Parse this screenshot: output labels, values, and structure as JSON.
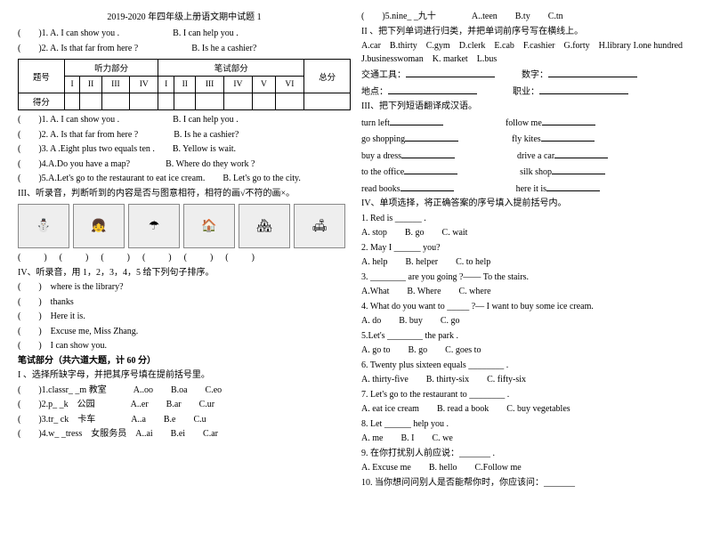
{
  "header": {
    "title": "2019-2020 年四年级上册语文期中试题 1"
  },
  "left": {
    "qA1": "(　　)1. A. I can show you .　　　　　　B. I can help you .",
    "qA2": "(　　)2. A. Is that far from here ?　　　　　　B. Is he a cashier?",
    "scoreTable": {
      "listen": "听力部分",
      "written": "笔试部分",
      "row": "题号",
      "score": "得分",
      "total": "总分",
      "cols": [
        "I",
        "II",
        "III",
        "IV",
        "I",
        "II",
        "III",
        "IV",
        "V",
        "VI"
      ]
    },
    "l1": "(　　)1. A. I can show you .　　　　　　B. I can help you .",
    "l2": "(　　)2. A. Is that far from here ?　　　　B. Is he a cashier?",
    "l3": "(　　)3. A .Eight plus two equals ten .　　B. Yellow is wait.",
    "l4": "(　　)4.A.Do you have a map?　　　　B. Where do they work ?",
    "l5": "(　　)5.A.Let's go to the restaurant to eat ice cream.　　B. Let's go to the city.",
    "secIII": "III、听录音，判断听到的内容是否与图意相符，相符的画√不符的画×。",
    "bracketRow": "(　　)　(　　)　(　　)　(　　)　(　　)　(　　)",
    "secIV": "IV、听录音，用 1，2，3，4，5 给下列句子排序。",
    "s1": "(　　)　where is the library?",
    "s2": "(　　)　thanks",
    "s3": "(　　)　Here it is.",
    "s4": "(　　)　Excuse me, Miss Zhang.",
    "s5": "(　　)　I can show you.",
    "writtenHdr": "笔试部分（共六道大题，计 60 分）",
    "secI": "I 、选择所缺字母，并把其序号填在提前括号里。",
    "c1a": "(　　)1.classr_ _m 教室",
    "c1b": "A..oo　　B.oa　　C.eo",
    "c2a": "(　　)2.p_ _k　公园",
    "c2b": "A..er　　B.ar　　C.ur",
    "c3a": "(　　)3.tr_ ck　卡车",
    "c3b": "A..a　　B.e　　C.u",
    "c4a": "(　　)4.w_ _tress　女服务员",
    "c4b": "A..ai　　B.ei　　C.ar"
  },
  "right": {
    "c5a": "(　　)5.nine_ _九十",
    "c5b": "A..teen　　B.ty　　C.tn",
    "secII": "II 、把下列单词进行归类，并把单词前序号写在横线上。",
    "words": "A.car　B.thirty　C.gym　D.clerk　E.cab　F.cashier　G.forty　H.library I.one hundred　J.businesswoman　K. market　L.bus",
    "cat1a": "交通工具：",
    "cat1b": "数字：",
    "cat2a": "地点：",
    "cat2b": "职业：",
    "secIII": "III、把下列短语翻译成汉语。",
    "p1a": "turn left",
    "p1b": "follow me",
    "p2a": "go shopping",
    "p2b": "fly kites",
    "p3a": "buy a dress",
    "p3b": "drive a car",
    "p4a": "to the office",
    "p4b": "silk shop",
    "p5a": "read books",
    "p5b": "here it is",
    "secIV": "IV、单项选择，将正确答案的序号填入提前括号内。",
    "m1": "1. Red is ______ .",
    "m1o": "A. stop　　B. go　　C. wait",
    "m2": "2. May I ______ you?",
    "m2o": "A. help　　B. helper　　C. to help",
    "m3": "3. ________ are you going ?—— To the stairs.",
    "m3o": "A.What　　B. Where　　C. where",
    "m4": "4. What do you want to _____ ?— I want to buy some ice cream.",
    "m4o": "A. do　　B. buy　　C. go",
    "m5": "5.Let's ________ the park .",
    "m5o": "A.  go to　　B. go　　C. goes to",
    "m6": "6. Twenty plus sixteen equals ________ .",
    "m6o": "A. thirty-five　　B. thirty-six　　C. fifty-six",
    "m7": "7. Let's go to the restaurant to ________ .",
    "m7o": "A. eat ice cream　　B. read a book　　C. buy vegetables",
    "m8": "8. Let ______ help you .",
    "m8o": "A. me　　B. I　　C. we",
    "m9": "9. 在你打扰别人前应说：_______ .",
    "m9o": "A. Excuse me　　B. hello　　C.Follow me",
    "m10": "10. 当你想问问别人是否能帮你时，你应该问：_______"
  }
}
